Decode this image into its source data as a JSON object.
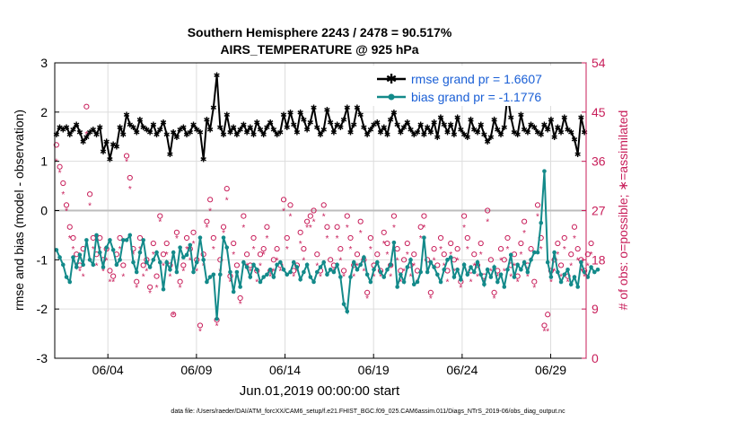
{
  "chart_data": {
    "type": "line",
    "title_line1": "Southern Hemisphere 2243 / 2478 = 90.517%",
    "title_line2": "AIRS_TEMPERATURE @ 925 hPa",
    "ylabel": "rmse and bias (model - observation)",
    "ylabel_right": "# of obs: o=possible; ∗=assimilated",
    "xlabel": "Jun.01,2019 00:00:00 start",
    "footer": "data file: /Users/raeder/DAI/ATM_forcXX/CAM6_setup/f.e21.FHIST_BGC.f09_025.CAM6assim.011/Diags_NTrS_2019-06/obs_diag_output.nc",
    "ylim": [
      -3,
      3
    ],
    "ylim_right": [
      0,
      54
    ],
    "xlim": [
      0,
      30
    ],
    "yticks": [
      "-3",
      "-2",
      "-1",
      "0",
      "1",
      "2",
      "3"
    ],
    "yticks_right": [
      "0",
      "9",
      "18",
      "27",
      "36",
      "45",
      "54"
    ],
    "xticks": [
      {
        "x": 3,
        "label": "06/04"
      },
      {
        "x": 8,
        "label": "06/09"
      },
      {
        "x": 13,
        "label": "06/14"
      },
      {
        "x": 18,
        "label": "06/19"
      },
      {
        "x": 23,
        "label": "06/24"
      },
      {
        "x": 28,
        "label": "06/29"
      }
    ],
    "colors": {
      "rmse": "#000000",
      "bias": "#138a8a",
      "obs": "#c81e5a",
      "zero_line": "#bdbdbd",
      "grid": "#dddddd",
      "legend_text": "#1a5fd6"
    },
    "series": [
      {
        "name": "rmse grand pr = 1.6607",
        "marker": "star",
        "values": [
          1.55,
          1.7,
          1.65,
          1.7,
          1.55,
          1.65,
          1.75,
          1.6,
          1.4,
          1.5,
          1.6,
          1.65,
          1.55,
          1.7,
          1.2,
          1.4,
          1.05,
          1.35,
          1.3,
          1.7,
          1.55,
          1.95,
          1.75,
          1.7,
          1.6,
          1.85,
          1.7,
          1.65,
          1.6,
          1.75,
          1.55,
          1.65,
          1.8,
          1.55,
          1.15,
          1.6,
          1.5,
          1.65,
          1.7,
          1.55,
          1.6,
          1.75,
          1.65,
          1.6,
          1.05,
          1.85,
          1.65,
          2.1,
          2.75,
          1.7,
          1.55,
          1.95,
          1.6,
          1.7,
          1.55,
          1.65,
          1.75,
          1.6,
          1.7,
          1.55,
          1.8,
          1.65,
          1.55,
          1.7,
          1.8,
          1.65,
          1.55,
          1.6,
          1.95,
          1.7,
          2.0,
          1.75,
          1.6,
          2.0,
          1.85,
          1.65,
          1.8,
          2.1,
          1.7,
          1.55,
          1.65,
          2.05,
          1.8,
          1.6,
          1.75,
          1.7,
          1.85,
          2.1,
          1.6,
          1.75,
          2.1,
          1.95,
          1.7,
          1.55,
          1.65,
          1.75,
          1.8,
          1.6,
          1.7,
          1.55,
          1.85,
          2.0,
          1.75,
          1.6,
          1.7,
          1.8,
          1.65,
          1.55,
          1.6,
          1.75,
          1.55,
          1.7,
          1.6,
          1.8,
          1.5,
          1.9,
          1.75,
          1.6,
          1.75,
          1.55,
          1.9,
          1.65,
          1.55,
          1.5,
          1.85,
          1.65,
          1.6,
          1.75,
          1.55,
          1.4,
          1.5,
          1.85,
          1.65,
          1.55,
          1.7,
          2.35,
          1.9,
          1.6,
          1.55,
          1.95,
          1.65,
          1.6,
          1.75,
          1.7,
          1.6,
          1.55,
          1.75,
          1.65,
          1.85,
          1.5,
          1.7,
          1.6,
          1.9,
          1.65,
          1.6,
          1.45,
          1.15,
          1.9,
          1.6
        ]
      },
      {
        "name": "bias grand pr = -1.1776",
        "marker": "circle",
        "values": [
          -0.8,
          -0.95,
          -1.1,
          -1.35,
          -1.45,
          -0.95,
          -1.15,
          -0.9,
          -1.1,
          -0.6,
          -1.0,
          -1.1,
          -0.5,
          -0.85,
          -1.15,
          -0.75,
          -0.6,
          -0.8,
          -1.1,
          -1.0,
          -0.6,
          -0.6,
          -0.5,
          -1.05,
          -1.25,
          -0.85,
          -0.6,
          -1.05,
          -1.15,
          -1.0,
          -0.85,
          -1.05,
          -1.6,
          -1.05,
          -1.2,
          -0.85,
          -1.25,
          -0.75,
          -0.95,
          -0.9,
          -0.7,
          -1.25,
          -1.05,
          -0.55,
          -1.0,
          -1.45,
          -1.35,
          -1.3,
          -2.2,
          -1.3,
          -0.55,
          -0.75,
          -1.25,
          -1.65,
          -1.25,
          -1.55,
          -1.05,
          -1.15,
          -1.35,
          -1.1,
          -1.2,
          -1.45,
          -1.35,
          -1.3,
          -1.2,
          -1.35,
          -1.1,
          -1.05,
          -1.2,
          -1.3,
          -1.25,
          -1.05,
          -1.15,
          -1.4,
          -1.25,
          -1.1,
          -1.35,
          -1.45,
          -1.25,
          -1.15,
          -1.05,
          -1.3,
          -1.2,
          -1.25,
          -1.1,
          -1.35,
          -1.9,
          -2.05,
          -1.35,
          -1.05,
          -1.2,
          -1.1,
          -0.95,
          -1.3,
          -1.45,
          -1.2,
          -1.05,
          -1.25,
          -1.35,
          -1.2,
          -1.1,
          -0.65,
          -1.55,
          -1.3,
          -1.45,
          -1.15,
          -1.0,
          -1.5,
          -1.45,
          -1.25,
          -0.55,
          -1.25,
          -1.05,
          -1.15,
          -1.3,
          -1.45,
          -1.2,
          -1.0,
          -0.95,
          -1.35,
          -1.2,
          -1.4,
          -1.1,
          -1.3,
          -1.15,
          -1.25,
          -1.05,
          -1.3,
          -1.5,
          -1.2,
          -1.35,
          -1.15,
          -1.45,
          -1.3,
          -1.55,
          -1.2,
          -0.9,
          -1.35,
          -1.1,
          -1.2,
          -1.05,
          -1.25,
          -1.0,
          -0.85,
          -0.85,
          -0.25,
          0.8,
          -1.05,
          -1.35,
          -0.85,
          -1.25,
          -1.45,
          -1.3,
          -1.2,
          -1.5,
          -1.35,
          -1.55,
          -1.05,
          -1.25,
          -1.35,
          -1.15,
          -1.25,
          -1.2
        ]
      },
      {
        "name": "obs possible",
        "marker": "open-circle",
        "axis": "right",
        "values": [
          39,
          35,
          32,
          28,
          24,
          22,
          19,
          17,
          20,
          46,
          30,
          22,
          19,
          22,
          18,
          20,
          16,
          15,
          19,
          22,
          17,
          37,
          33,
          20,
          14,
          22,
          17,
          18,
          13,
          21,
          15,
          26,
          19,
          21,
          17,
          8,
          23,
          14,
          17,
          22,
          20,
          23,
          18,
          6,
          19,
          25,
          29,
          22,
          7,
          18,
          24,
          31,
          15,
          21,
          17,
          11,
          26,
          19,
          17,
          22,
          16,
          19,
          20,
          24,
          16,
          18,
          20,
          17,
          29,
          22,
          28,
          16,
          17,
          23,
          20,
          25,
          26,
          27,
          19,
          16,
          28,
          24,
          18,
          17,
          24,
          20,
          16,
          26,
          22,
          17,
          19,
          25,
          18,
          12,
          22,
          17,
          19,
          16,
          23,
          21,
          17,
          26,
          20,
          16,
          18,
          21,
          17,
          19,
          16,
          24,
          26,
          18,
          12,
          20,
          17,
          22,
          19,
          16,
          21,
          18,
          20,
          14,
          26,
          22,
          16,
          19,
          17,
          21,
          15,
          27,
          18,
          12,
          16,
          20,
          18,
          22,
          17,
          19,
          15,
          21,
          25,
          17,
          20,
          14,
          28,
          22,
          6,
          8,
          16,
          18,
          21,
          17,
          22,
          15,
          19,
          24,
          20,
          18,
          16,
          19,
          21
        ]
      },
      {
        "name": "obs assimilated",
        "marker": "asterisk",
        "axis": "right",
        "values": [
          36,
          34,
          30,
          27,
          22,
          20,
          17,
          16,
          15,
          41,
          28,
          20,
          17,
          20,
          16,
          18,
          14,
          14,
          17,
          20,
          15,
          36,
          31,
          19,
          13,
          20,
          15,
          16,
          12,
          19,
          13,
          25,
          17,
          19,
          15,
          8,
          22,
          13,
          16,
          20,
          18,
          21,
          16,
          5,
          17,
          24,
          27,
          20,
          6,
          16,
          23,
          29,
          14,
          19,
          15,
          10,
          24,
          17,
          16,
          20,
          14,
          17,
          19,
          22,
          15,
          16,
          18,
          16,
          27,
          20,
          26,
          15,
          16,
          21,
          18,
          24,
          24,
          25,
          17,
          15,
          26,
          22,
          16,
          16,
          22,
          18,
          15,
          24,
          20,
          15,
          17,
          23,
          16,
          11,
          20,
          15,
          17,
          15,
          21,
          19,
          15,
          24,
          18,
          14,
          16,
          19,
          15,
          17,
          14,
          22,
          24,
          16,
          11,
          18,
          15,
          20,
          17,
          14,
          19,
          16,
          18,
          13,
          24,
          20,
          14,
          17,
          15,
          19,
          14,
          25,
          16,
          11,
          15,
          18,
          16,
          20,
          15,
          17,
          14,
          19,
          23,
          15,
          18,
          13,
          26,
          20,
          5,
          5,
          14,
          16,
          19,
          15,
          20,
          14,
          17,
          22,
          18,
          16,
          15,
          17,
          19
        ]
      }
    ]
  }
}
